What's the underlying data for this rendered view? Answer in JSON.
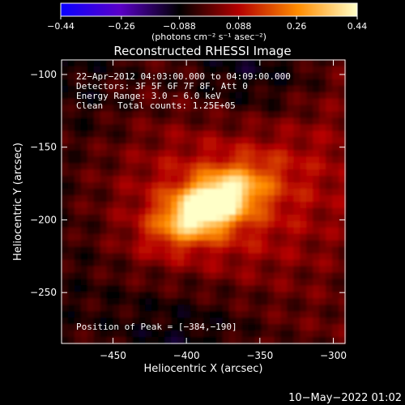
{
  "chart_data": {
    "type": "heatmap",
    "title": "Reconstructed RHESSI Image",
    "xlabel": "Heliocentric X (arcsec)",
    "ylabel": "Heliocentric Y (arcsec)",
    "xlim": [
      -485,
      -292
    ],
    "ylim": [
      -285,
      -90
    ],
    "x_ticks": [
      -450,
      -400,
      -350,
      -300
    ],
    "y_ticks": [
      -100,
      -150,
      -200,
      -250
    ],
    "x_tick_labels": [
      "−450",
      "−400",
      "−350",
      "−300"
    ],
    "y_tick_labels": [
      "−100",
      "−150",
      "−200",
      "−250"
    ],
    "colorbar": {
      "min": -0.44,
      "max": 0.44,
      "ticks": [
        -0.44,
        -0.26,
        -0.088,
        0.088,
        0.26,
        0.44
      ],
      "tick_labels": [
        "−0.44",
        "−0.26",
        "−0.088",
        "0.088",
        "0.26",
        "0.44"
      ],
      "colors": [
        "#0a00ff",
        "#5a00c8",
        "#000000",
        "#b40000",
        "#ff8c00",
        "#ffffc8"
      ]
    },
    "annotations": {
      "time_range": "22−Apr−2012 04:03:00.000 to 04:09:00.000",
      "detectors": "Detectors: 3F 5F 6F 7F 8F, Att 0",
      "energy_range": "Energy Range: 3.0 − 6.0 keV",
      "method": "Clean",
      "total_counts": "Total counts: 1.25E+05",
      "peak_position": "Position of Peak = [−384,−190]"
    },
    "peak": {
      "x": -384,
      "y": -190,
      "value": 0.44
    },
    "source_sigma_along_major": 24,
    "source_sigma_along_minor": 12,
    "source_major_axis_angle_deg": 28
  },
  "colorbar_units": "(photons cm⁻² s⁻¹ asec⁻²)",
  "footer_date": "10−May−2022 01:02"
}
